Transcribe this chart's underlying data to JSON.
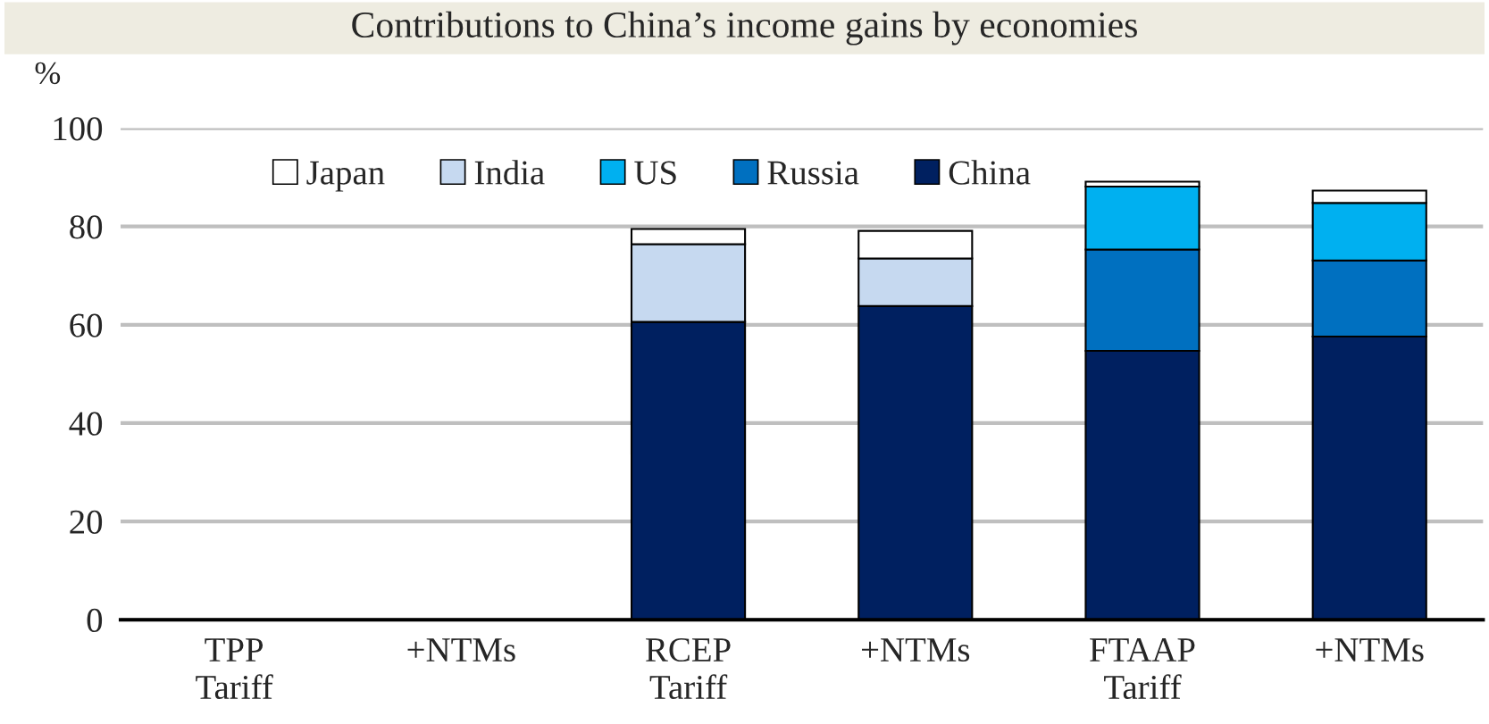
{
  "chart_data": {
    "type": "bar",
    "title": "Contributions to China’s income gains by economies",
    "ylabel": "%",
    "categories": [
      "TPP\nTariff",
      "+NTMs",
      "RCEP\nTariff",
      "+NTMs",
      "FTAAP\nTariff",
      "+NTMs"
    ],
    "stacked": true,
    "series": [
      {
        "name": "China",
        "color": "#002060",
        "values": [
          null,
          null,
          60.6,
          63.8,
          54.7,
          57.6
        ]
      },
      {
        "name": "Russia",
        "color": "#0070c0",
        "values": [
          null,
          null,
          0,
          0,
          20.6,
          15.5
        ]
      },
      {
        "name": "US",
        "color": "#00b0f0",
        "values": [
          null,
          null,
          0,
          0,
          12.8,
          11.7
        ]
      },
      {
        "name": "India",
        "color": "#c6d9f0",
        "values": [
          null,
          null,
          15.8,
          9.7,
          0,
          0
        ]
      },
      {
        "name": "Japan",
        "color": "#ffffff",
        "values": [
          null,
          null,
          3.1,
          5.6,
          1.0,
          2.5
        ]
      }
    ],
    "ylim": [
      0,
      100
    ],
    "yticks": [
      0,
      20,
      40,
      60,
      80,
      100
    ],
    "grid": "y",
    "legend": "top"
  }
}
